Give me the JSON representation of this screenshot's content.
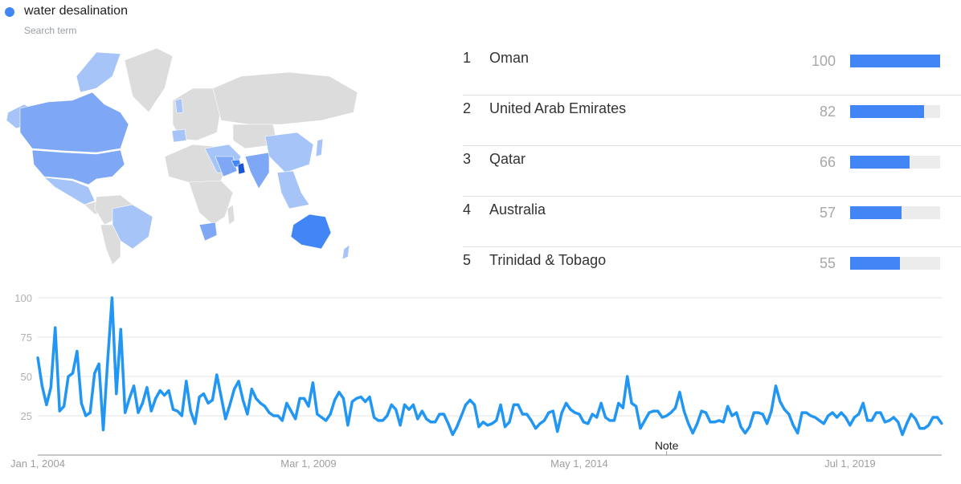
{
  "legend": {
    "term": "water desalination",
    "subtitle": "Search term",
    "color": "#4285f4"
  },
  "map": {
    "colors": {
      "no_data": "#dcdcdc",
      "low": "#a6c4f7",
      "mid": "#7ea8f5",
      "high": "#4285f4",
      "top": "#1a56d6"
    }
  },
  "rankings": [
    {
      "rank": "1",
      "name": "Oman",
      "value": 100
    },
    {
      "rank": "2",
      "name": "United Arab Emirates",
      "value": 82
    },
    {
      "rank": "3",
      "name": "Qatar",
      "value": 66
    },
    {
      "rank": "4",
      "name": "Australia",
      "value": 57
    },
    {
      "rank": "5",
      "name": "Trinidad & Tobago",
      "value": 55
    }
  ],
  "bar_color": "#4285f4",
  "chart_data": {
    "type": "line",
    "title": "",
    "xlabel": "",
    "ylabel": "",
    "ylim": [
      0,
      100
    ],
    "yticks": [
      "25",
      "50",
      "75",
      "100"
    ],
    "xtick_labels": [
      "Jan 1, 2004",
      "Mar 1, 2009",
      "May 1, 2014",
      "Jul 1, 2019"
    ],
    "grid": true,
    "line_color": "#2196f3",
    "annotation": {
      "label": "Note",
      "date": "2016-01"
    },
    "x_start": "2004-01",
    "x_frequency": "monthly",
    "series": [
      {
        "values_by_year": {
          "2004": [
            62,
            44,
            32,
            43,
            81,
            28,
            31,
            50,
            52,
            66,
            33,
            25
          ],
          "2005": [
            27,
            52,
            58,
            16,
            60,
            100,
            39,
            80,
            27,
            36,
            44,
            27
          ],
          "2006": [
            33,
            43,
            28,
            36,
            41,
            38,
            41,
            29,
            28,
            25,
            47,
            28
          ],
          "2007": [
            20,
            37,
            39,
            33,
            35,
            51,
            37,
            23,
            32,
            42,
            47,
            35
          ],
          "2008": [
            26,
            42,
            36,
            33,
            31,
            27,
            25,
            25,
            22,
            33,
            28,
            23
          ],
          "2009": [
            36,
            36,
            31,
            46,
            26,
            24,
            22,
            26,
            35,
            40,
            36,
            19
          ],
          "2010": [
            34,
            36,
            37,
            34,
            37,
            24,
            22,
            22,
            25,
            32,
            29,
            19
          ],
          "2011": [
            32,
            29,
            32,
            23,
            28,
            23,
            21,
            21,
            26,
            26,
            20,
            13
          ],
          "2012": [
            18,
            25,
            32,
            35,
            32,
            18,
            21,
            19,
            20,
            22,
            32,
            18
          ],
          "2013": [
            21,
            32,
            32,
            26,
            26,
            22,
            17,
            20,
            22,
            27,
            28,
            15
          ],
          "2014": [
            27,
            33,
            29,
            27,
            26,
            21,
            20,
            26,
            24,
            33,
            24,
            22
          ],
          "2015": [
            22,
            33,
            30,
            50,
            33,
            31,
            17,
            22,
            27,
            28,
            28,
            24
          ],
          "2016": [
            25,
            27,
            30,
            40,
            28,
            20,
            14,
            20,
            28,
            27,
            21,
            21
          ],
          "2017": [
            22,
            21,
            31,
            25,
            27,
            18,
            14,
            18,
            27,
            27,
            26,
            20
          ],
          "2018": [
            28,
            44,
            34,
            29,
            26,
            19,
            14,
            27,
            27,
            25,
            24,
            22
          ],
          "2019": [
            20,
            25,
            27,
            24,
            27,
            24,
            19,
            24,
            26,
            33,
            22,
            22
          ],
          "2020": [
            27,
            27,
            21,
            22,
            24,
            21,
            13,
            20,
            26,
            23,
            17,
            17
          ],
          "2021": [
            19,
            24,
            24,
            20
          ]
        }
      }
    ]
  }
}
